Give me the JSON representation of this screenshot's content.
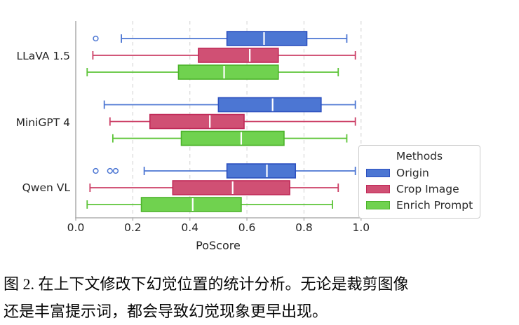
{
  "figure": {
    "caption_line1": "图 2. 在上下文修改下幻觉位置的统计分析。无论是裁剪图像",
    "caption_line2": "还是丰富提示词，都会导致幻觉现象更早出现。"
  },
  "chart_data": {
    "type": "boxplot",
    "orientation": "horizontal",
    "title": "",
    "xlabel": "PoScore",
    "ylabel": "",
    "xlim": [
      0,
      1.03
    ],
    "xtick_values": [
      0.0,
      0.2,
      0.4,
      0.6,
      0.8,
      1.0
    ],
    "xtick_labels": [
      "0.0",
      "0.2",
      "0.4",
      "0.6",
      "0.8",
      "1.0"
    ],
    "grid": "vertical-dashed",
    "groups": [
      "LLaVA 1.5",
      "MiniGPT 4",
      "Qwen VL"
    ],
    "legend": {
      "title": "Methods",
      "position": "lower-right"
    },
    "style": {
      "gridline_color": "#d9d9d9",
      "spine_color": "#b0b0b0",
      "median_color": "#ffffff",
      "text_color": "#262626"
    },
    "series": [
      {
        "name": "Origin",
        "fill": "#4c76d3",
        "edge": "#2c50bf",
        "line": "#4c76d3",
        "boxes": [
          {
            "group": "LLaVA 1.5",
            "whisker_low": 0.16,
            "q1": 0.53,
            "median": 0.66,
            "q3": 0.81,
            "whisker_high": 0.95,
            "outliers": [
              0.07
            ]
          },
          {
            "group": "MiniGPT 4",
            "whisker_low": 0.1,
            "q1": 0.5,
            "median": 0.69,
            "q3": 0.86,
            "whisker_high": 0.98,
            "outliers": []
          },
          {
            "group": "Qwen VL",
            "whisker_low": 0.24,
            "q1": 0.53,
            "median": 0.67,
            "q3": 0.77,
            "whisker_high": 0.98,
            "outliers": [
              0.07,
              0.12,
              0.14
            ]
          }
        ]
      },
      {
        "name": "Crop Image",
        "fill": "#d05074",
        "edge": "#c02857",
        "line": "#cc3f66",
        "boxes": [
          {
            "group": "LLaVA 1.5",
            "whisker_low": 0.06,
            "q1": 0.43,
            "median": 0.61,
            "q3": 0.71,
            "whisker_high": 0.98,
            "outliers": []
          },
          {
            "group": "MiniGPT 4",
            "whisker_low": 0.12,
            "q1": 0.26,
            "median": 0.47,
            "q3": 0.59,
            "whisker_high": 0.98,
            "outliers": []
          },
          {
            "group": "Qwen VL",
            "whisker_low": 0.05,
            "q1": 0.34,
            "median": 0.55,
            "q3": 0.75,
            "whisker_high": 0.92,
            "outliers": []
          }
        ]
      },
      {
        "name": "Enrich Prompt",
        "fill": "#70d24f",
        "edge": "#4cb32a",
        "line": "#5dc438",
        "boxes": [
          {
            "group": "LLaVA 1.5",
            "whisker_low": 0.04,
            "q1": 0.36,
            "median": 0.52,
            "q3": 0.71,
            "whisker_high": 0.92,
            "outliers": []
          },
          {
            "group": "MiniGPT 4",
            "whisker_low": 0.13,
            "q1": 0.37,
            "median": 0.58,
            "q3": 0.73,
            "whisker_high": 0.95,
            "outliers": []
          },
          {
            "group": "Qwen VL",
            "whisker_low": 0.04,
            "q1": 0.23,
            "median": 0.41,
            "q3": 0.58,
            "whisker_high": 0.9,
            "outliers": []
          }
        ]
      }
    ]
  }
}
